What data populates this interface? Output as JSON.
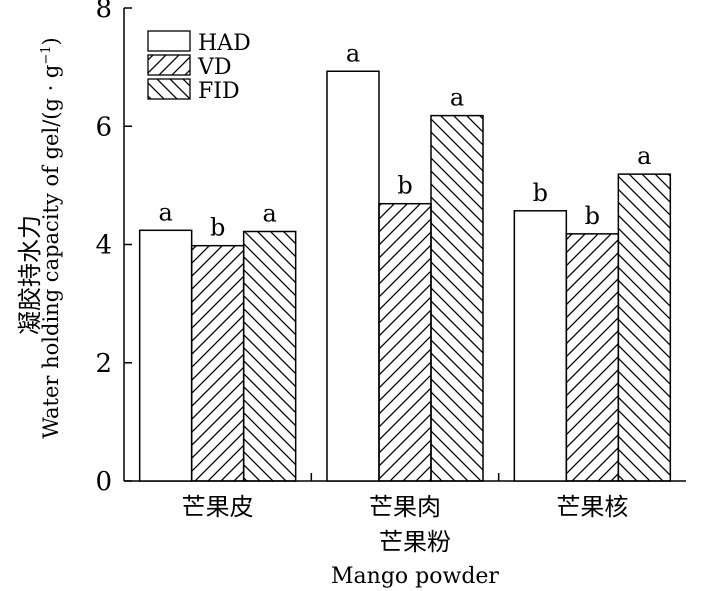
{
  "chart_data": {
    "type": "bar",
    "categories": [
      "芒果皮",
      "芒果肉",
      "芒果核"
    ],
    "series": [
      {
        "name": "HAD",
        "values": [
          4.24,
          6.93,
          4.57
        ],
        "letters": [
          "a",
          "a",
          "b"
        ],
        "pattern": "none"
      },
      {
        "name": "VD",
        "values": [
          3.98,
          4.69,
          4.18
        ],
        "letters": [
          "b",
          "b",
          "b"
        ],
        "pattern": "diag-up"
      },
      {
        "name": "FID",
        "values": [
          4.22,
          6.18,
          5.19
        ],
        "letters": [
          "a",
          "a",
          "a"
        ],
        "pattern": "diag-down"
      }
    ],
    "xlabel": [
      "芒果粉",
      "Mango powder"
    ],
    "ylabel": [
      "凝胶持水力",
      "Water holding capacity of gel/(g · g",
      "−1",
      ")"
    ],
    "ylim": [
      0,
      8
    ],
    "yticks": [
      0,
      2,
      4,
      6,
      8
    ],
    "grid": false,
    "legend_position": "top-left",
    "colors": {
      "stroke": "#000000",
      "fill": "#ffffff"
    }
  }
}
